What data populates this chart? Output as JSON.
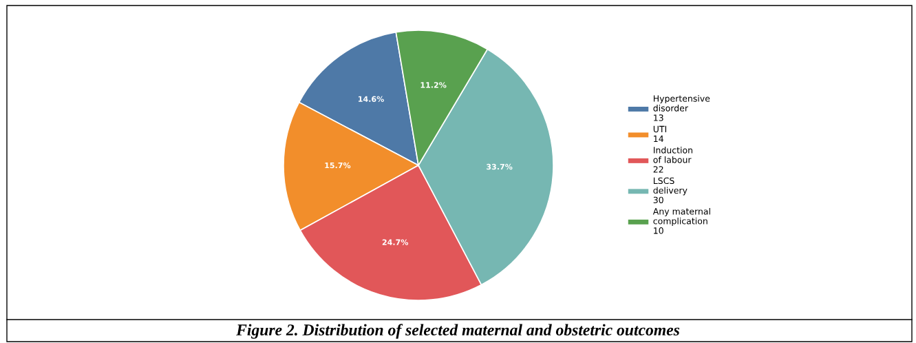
{
  "chart_data": {
    "type": "pie",
    "title": "Figure 2. Distribution of selected maternal and obstetric outcomes",
    "categories": [
      "Hypertensive\ndisorder\n13",
      "UTI\n14",
      "Induction\nof labour\n22",
      "LSCS\ndelivery\n30",
      "Any maternal\ncomplication\n10"
    ],
    "values": [
      14.6,
      15.7,
      24.7,
      33.7,
      11.2
    ],
    "value_labels": [
      "14.6%",
      "15.7%",
      "24.7%",
      "33.7%",
      "11.2%"
    ],
    "colors": [
      "#4e79a7",
      "#f28e2b",
      "#e15759",
      "#76b7b2",
      "#59a14f"
    ],
    "legend": "right"
  }
}
